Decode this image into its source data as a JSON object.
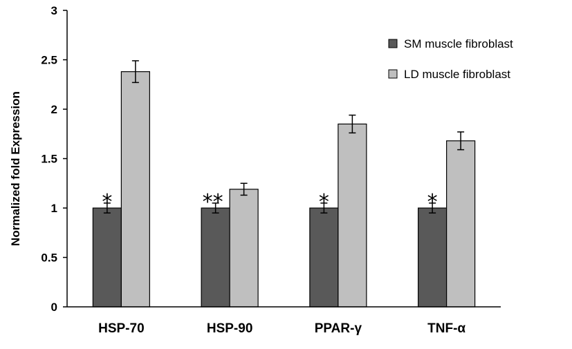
{
  "chart_data": {
    "type": "bar",
    "title": "",
    "xlabel": "",
    "ylabel": "Normalized fold Expression",
    "ylim": [
      0,
      3
    ],
    "yticks": [
      "0",
      "0.5",
      "1",
      "1.5",
      "2",
      "2.5",
      "3"
    ],
    "grid": false,
    "legend_position": "top-right",
    "categories": [
      "HSP-70",
      "HSP-90",
      "PPAR-γ",
      "TNF-α"
    ],
    "series": [
      {
        "name": "SM muscle fibroblast",
        "color": "#595959",
        "values": [
          1.0,
          1.0,
          1.0,
          1.0
        ],
        "errors": [
          0.05,
          0.05,
          0.05,
          0.05
        ]
      },
      {
        "name": "LD muscle fibroblast",
        "color": "#bfbfbf",
        "values": [
          2.38,
          1.19,
          1.85,
          1.68
        ],
        "errors": [
          0.11,
          0.06,
          0.09,
          0.09
        ]
      }
    ],
    "annotations": [
      "*",
      "**",
      "*",
      "*"
    ]
  }
}
